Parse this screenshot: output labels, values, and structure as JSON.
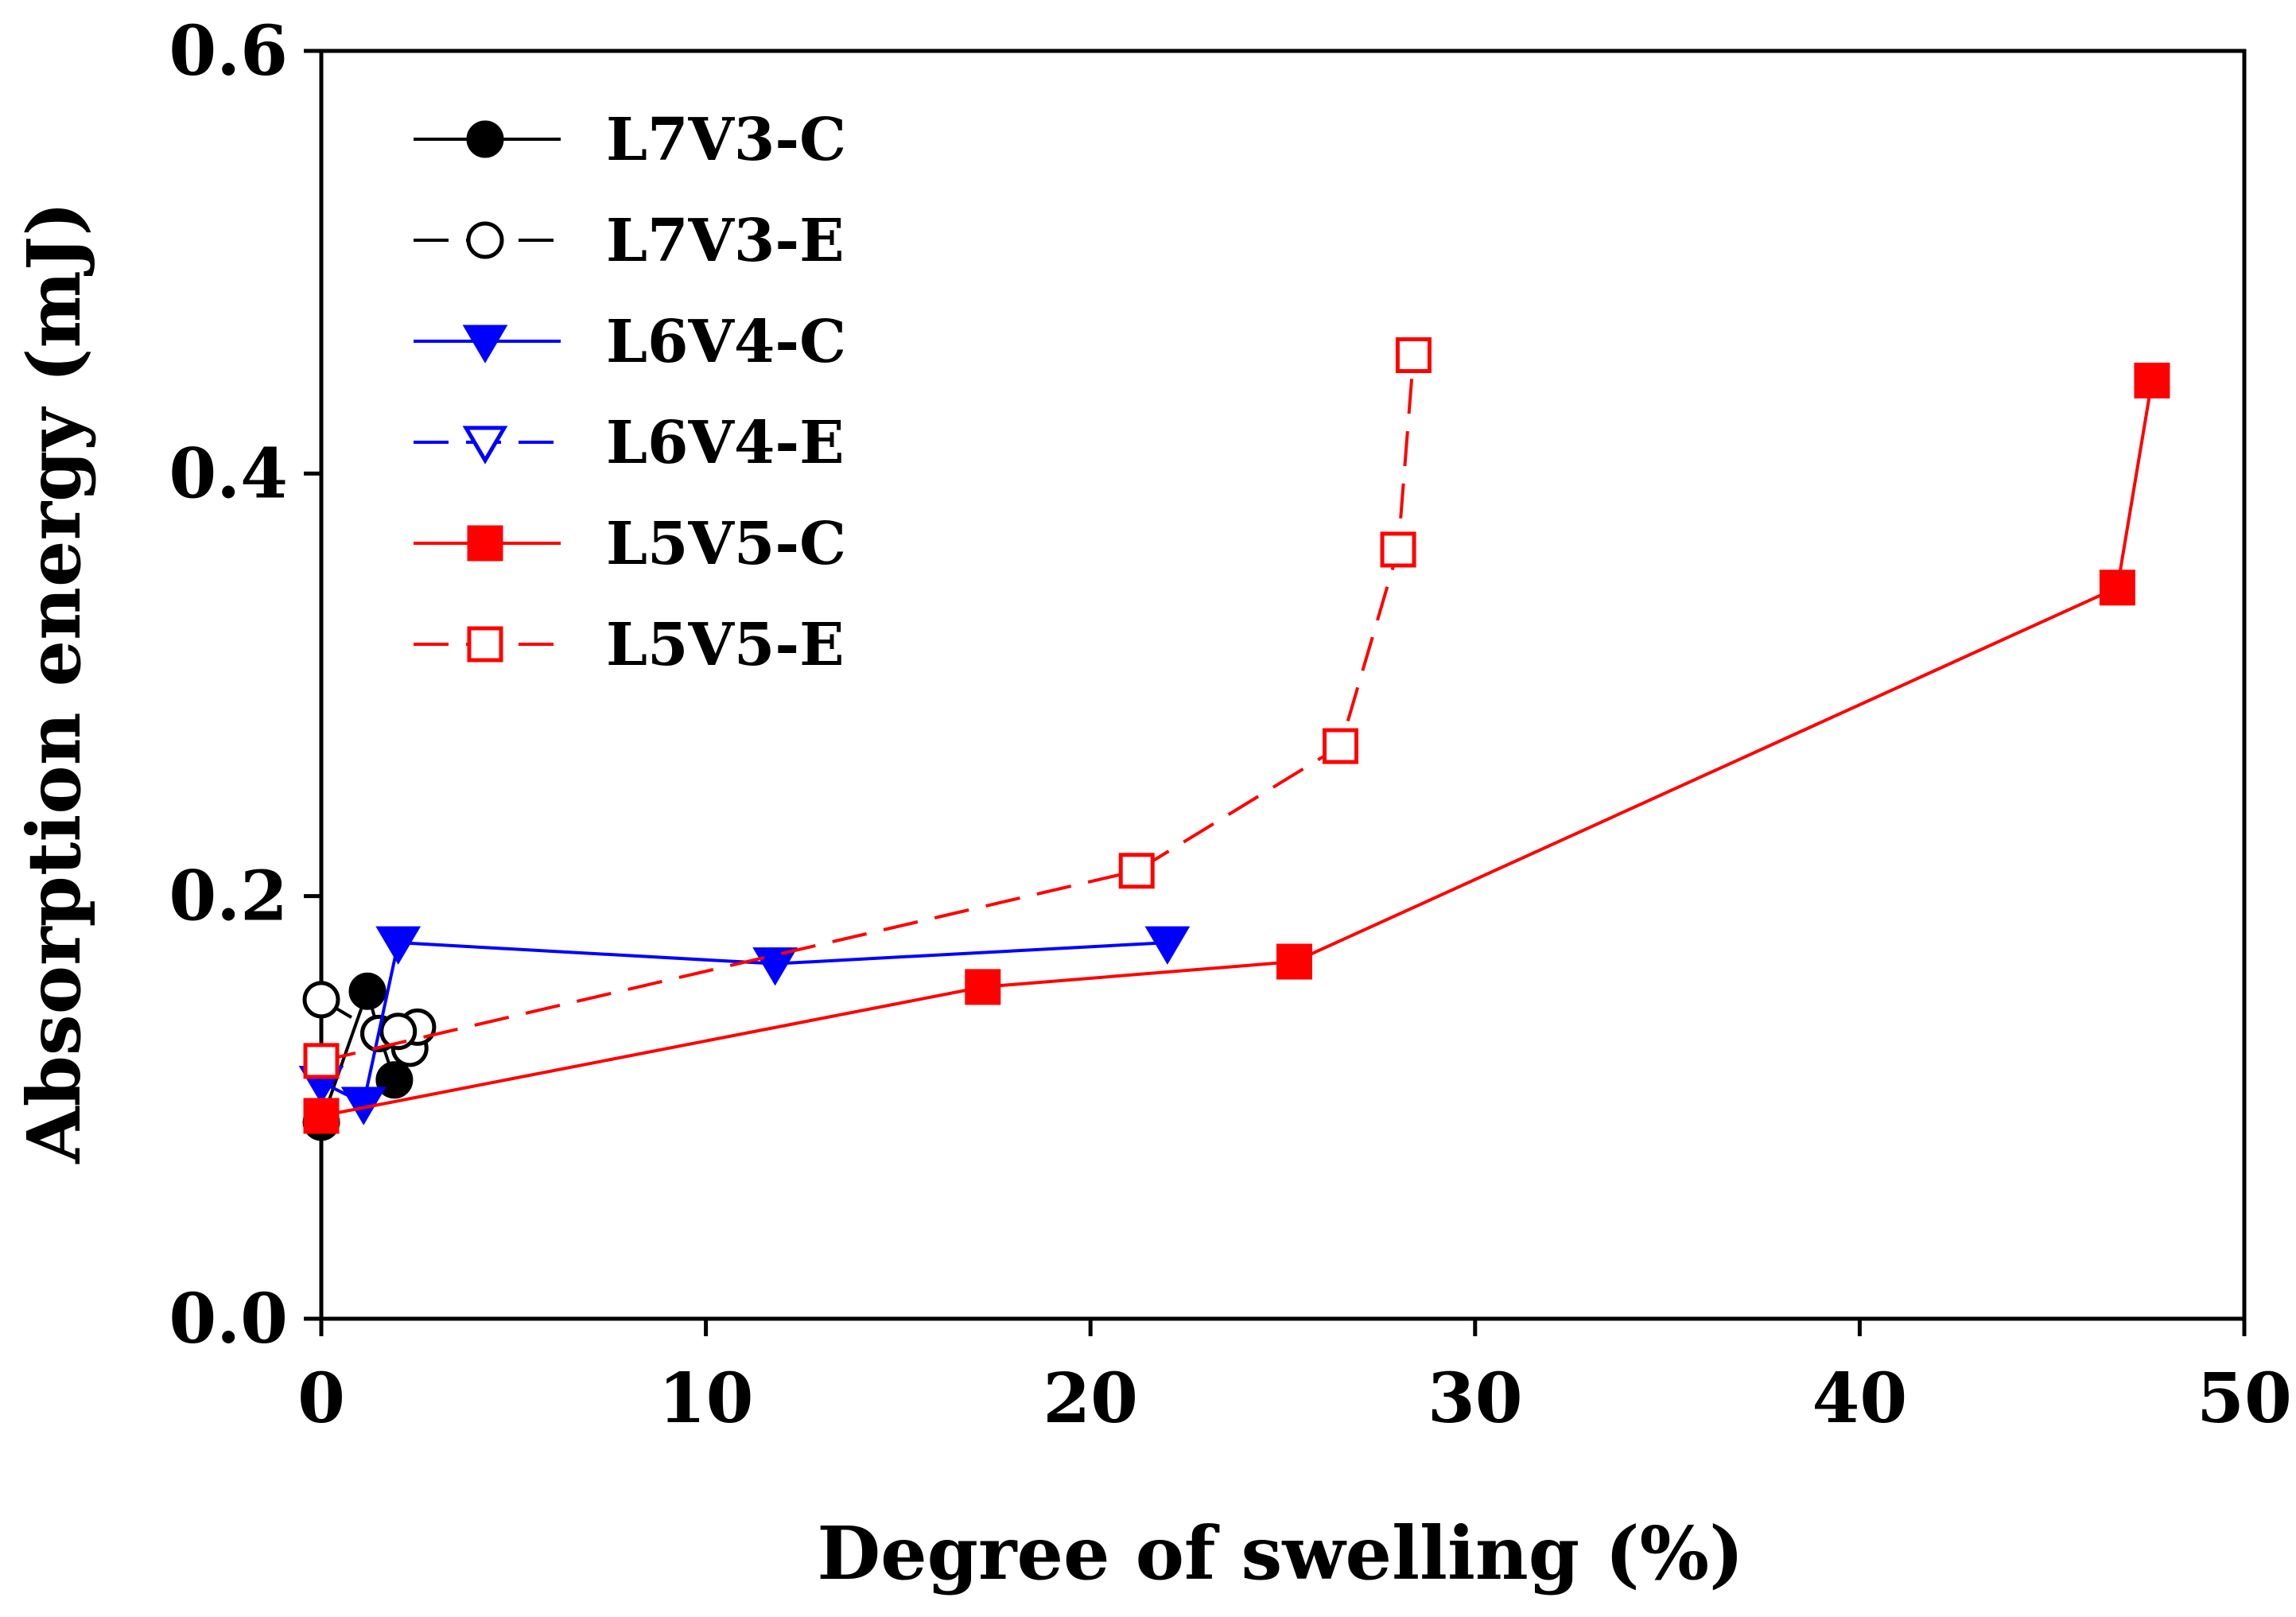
{
  "chart_data": {
    "type": "line",
    "title": "",
    "xlabel": "Degree of swelling (%)",
    "ylabel": "Absorption energy (mJ)",
    "xlim": [
      0,
      50
    ],
    "ylim": [
      0,
      0.6
    ],
    "x_ticks": [
      0,
      10,
      20,
      30,
      40,
      50
    ],
    "y_ticks": [
      0.0,
      0.2,
      0.4,
      0.6
    ],
    "x_tick_labels": [
      "0",
      "10",
      "20",
      "30",
      "40",
      "50"
    ],
    "y_tick_labels": [
      "0.0",
      "0.2",
      "0.4",
      "0.6"
    ],
    "grid": false,
    "legend_position": "top-left",
    "series": [
      {
        "name": "L7V3-C",
        "color": "#000000",
        "marker": "circle",
        "filled": true,
        "dashed": false,
        "x": [
          0,
          1.2,
          1.5,
          1.9
        ],
        "y": [
          0.093,
          0.155,
          0.135,
          0.113
        ]
      },
      {
        "name": "L7V3-E",
        "color": "#000000",
        "marker": "circle",
        "filled": false,
        "dashed": true,
        "x": [
          0,
          1.5,
          2.3,
          2.5,
          2.0
        ],
        "y": [
          0.151,
          0.135,
          0.128,
          0.138,
          0.136
        ]
      },
      {
        "name": "L6V4-C",
        "color": "#0000ff",
        "marker": "triangle-down",
        "filled": true,
        "dashed": false,
        "x": [
          0,
          1.1,
          2.0,
          11.8,
          22.0
        ],
        "y": [
          0.112,
          0.102,
          0.178,
          0.168,
          0.178
        ]
      },
      {
        "name": "L6V4-E",
        "color": "#0000ff",
        "marker": "triangle-down",
        "filled": false,
        "dashed": true,
        "x": [],
        "y": []
      },
      {
        "name": "L5V5-C",
        "color": "#ff0000",
        "marker": "square",
        "filled": true,
        "dashed": false,
        "x": [
          0,
          17.2,
          25.3,
          46.7,
          47.6
        ],
        "y": [
          0.096,
          0.157,
          0.169,
          0.346,
          0.444
        ]
      },
      {
        "name": "L5V5-E",
        "color": "#ff0000",
        "marker": "square",
        "filled": false,
        "dashed": true,
        "x": [
          0,
          21.2,
          26.5,
          28.0,
          28.4
        ],
        "y": [
          0.122,
          0.212,
          0.271,
          0.364,
          0.456
        ]
      }
    ]
  }
}
